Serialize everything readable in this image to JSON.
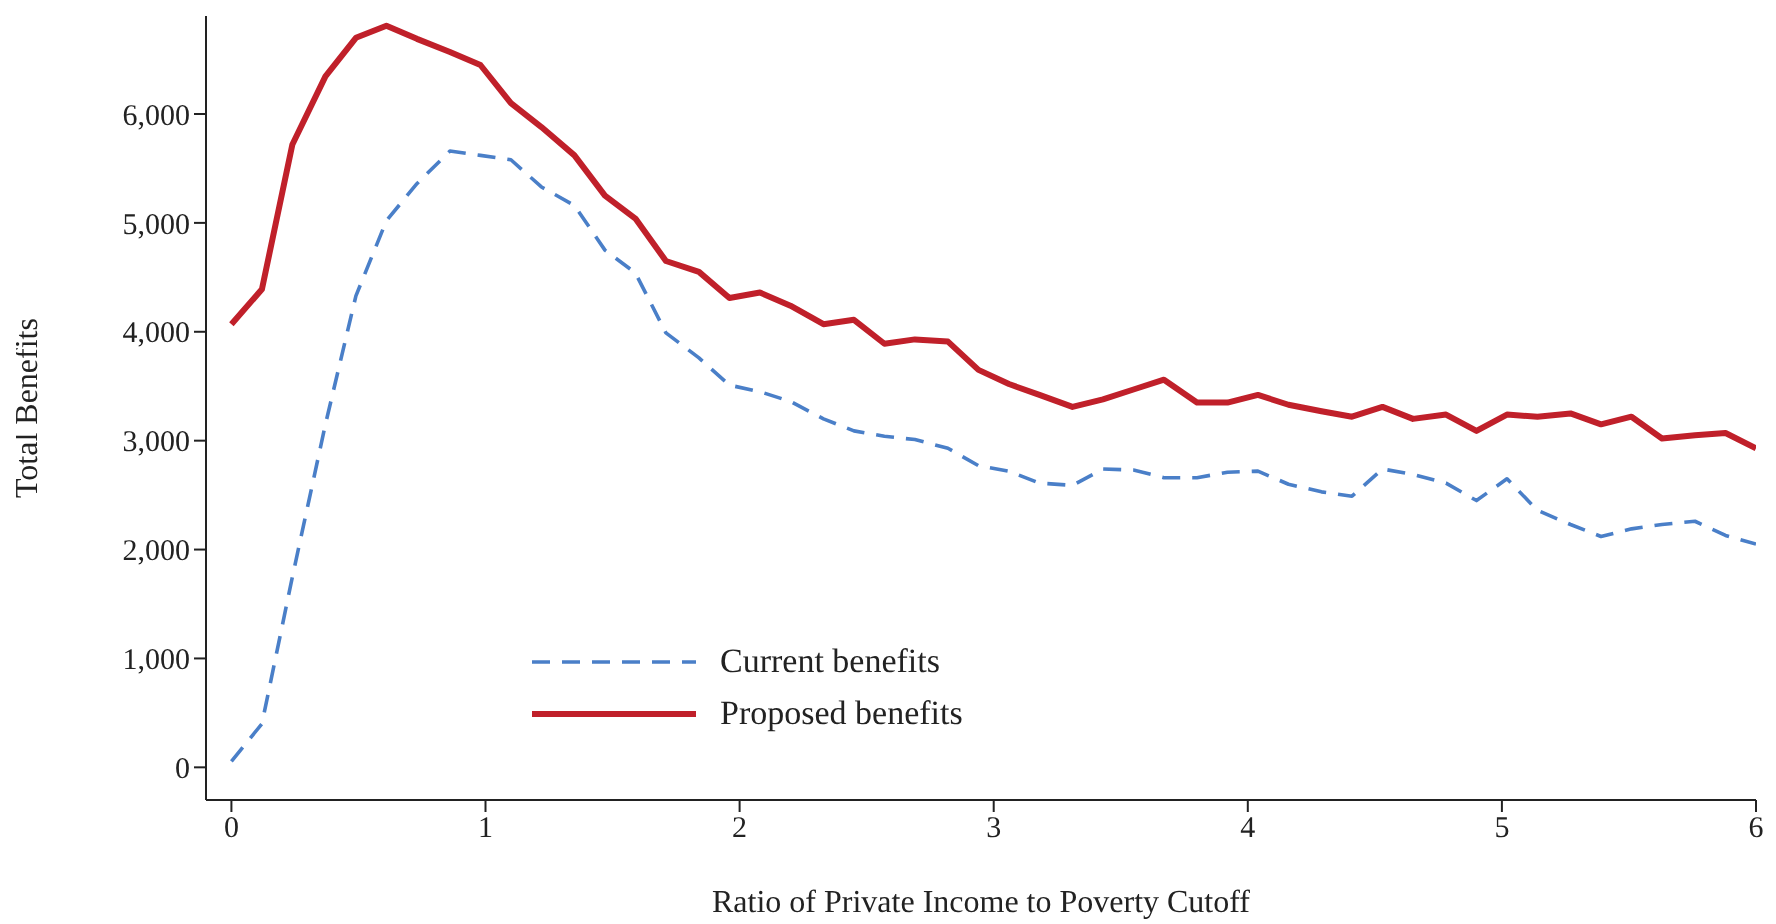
{
  "chart_data": {
    "type": "line",
    "xlabel": "Ratio of Private Income to Poverty Cutoff",
    "ylabel": "Total Benefits",
    "x": [
      0,
      0.12,
      0.24,
      0.37,
      0.49,
      0.61,
      0.73,
      0.86,
      0.98,
      1.1,
      1.22,
      1.35,
      1.47,
      1.59,
      1.71,
      1.84,
      1.96,
      2.08,
      2.2,
      2.33,
      2.45,
      2.57,
      2.69,
      2.82,
      2.94,
      3.06,
      3.18,
      3.31,
      3.43,
      3.55,
      3.67,
      3.8,
      3.92,
      4.04,
      4.16,
      4.29,
      4.41,
      4.53,
      4.65,
      4.78,
      4.9,
      5.02,
      5.14,
      5.27,
      5.39,
      5.51,
      5.63,
      5.76,
      5.88,
      6
    ],
    "series": [
      {
        "name": "Current benefits",
        "color": "#4a7fc8",
        "line_style": "dashed",
        "values": [
          55,
          400,
          1750,
          3150,
          4330,
          5020,
          5360,
          5660,
          5620,
          5580,
          5330,
          5160,
          4750,
          4540,
          3990,
          3760,
          3510,
          3450,
          3360,
          3200,
          3090,
          3040,
          3010,
          2930,
          2770,
          2720,
          2610,
          2590,
          2740,
          2730,
          2660,
          2660,
          2710,
          2720,
          2600,
          2530,
          2490,
          2740,
          2690,
          2610,
          2450,
          2650,
          2360,
          2230,
          2120,
          2190,
          2230,
          2260,
          2130,
          2050
        ]
      },
      {
        "name": "Proposed benefits",
        "color": "#c0202a",
        "line_style": "solid",
        "values": [
          4070,
          4390,
          5720,
          6345,
          6700,
          6810,
          6690,
          6570,
          6450,
          6100,
          5880,
          5620,
          5250,
          5040,
          4650,
          4550,
          4310,
          4360,
          4240,
          4070,
          4110,
          3890,
          3930,
          3910,
          3650,
          3520,
          3420,
          3310,
          3380,
          3470,
          3560,
          3350,
          3350,
          3420,
          3330,
          3270,
          3220,
          3310,
          3200,
          3240,
          3090,
          3240,
          3220,
          3250,
          3150,
          3220,
          3020,
          3050,
          3070,
          2930
        ]
      }
    ],
    "xlim": [
      -0.1,
      6
    ],
    "xticks": [
      0,
      1,
      2,
      3,
      4,
      5,
      6
    ],
    "ylim": [
      -300,
      6900
    ],
    "yticks": [
      0,
      {
        "value": 1000,
        "label": "1,000"
      },
      {
        "value": 2000,
        "label": "2,000"
      },
      {
        "value": 3000,
        "label": "3,000"
      },
      {
        "value": 4000,
        "label": "4,000"
      },
      {
        "value": 5000,
        "label": "5,000"
      },
      {
        "value": 6000,
        "label": "6,000"
      }
    ],
    "legend": "bottom left"
  }
}
